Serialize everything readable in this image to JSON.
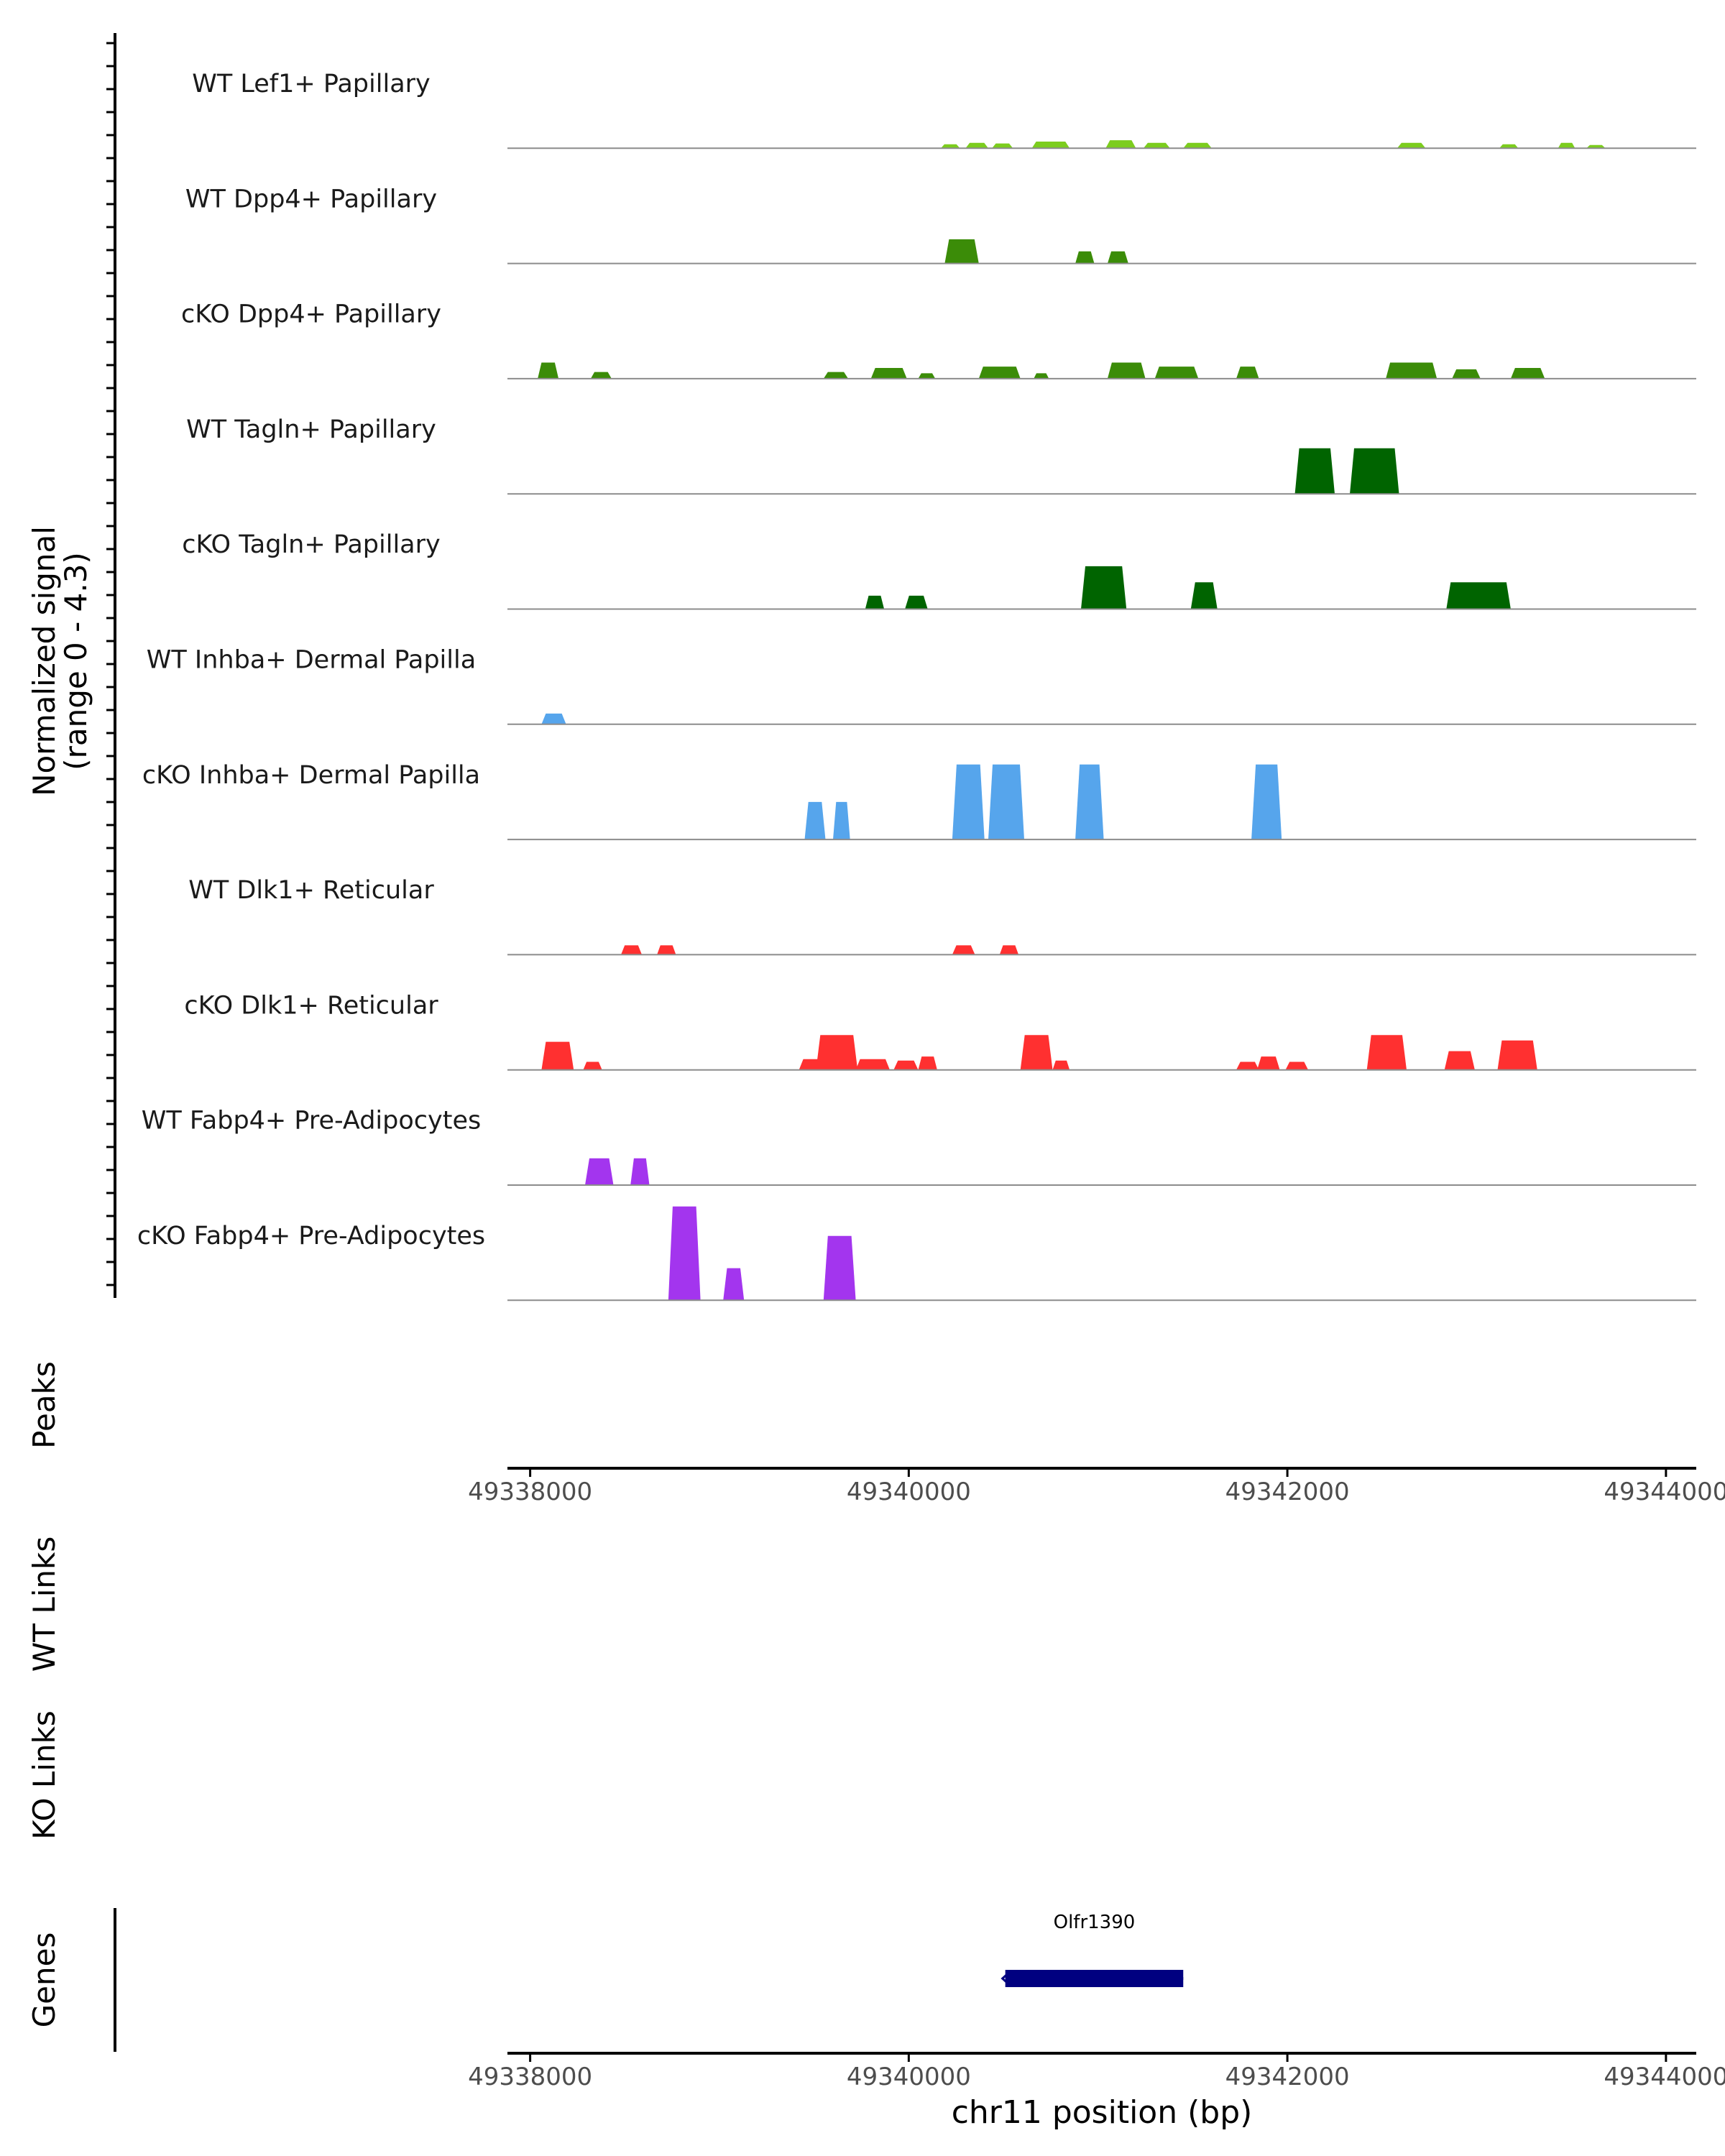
{
  "chart_data": {
    "type": "area",
    "chromosome": "chr11",
    "xlabel": "chr11 position (bp)",
    "ylabel": "Normalized signal",
    "ylabel_range": "(range 0 - 4.3)",
    "xlim": [
      49337880,
      49344160
    ],
    "ylim": [
      0,
      4.3
    ],
    "x_ticks": [
      49338000,
      49340000,
      49342000,
      49344000
    ],
    "x_tick_labels": [
      "49338000",
      "49340000",
      "49342000",
      "49344000"
    ],
    "track_labels": {
      "peaks": "Peaks",
      "wt_links": "WT Links",
      "ko_links": "KO Links",
      "genes": "Genes"
    },
    "tracks": [
      {
        "name": "WT Lef1+ Papillary",
        "color": "#7CCD1E",
        "peaks": [
          {
            "start": 49340170,
            "end": 49340270,
            "height": 0.15
          },
          {
            "start": 49340300,
            "end": 49340420,
            "height": 0.2
          },
          {
            "start": 49340440,
            "end": 49340550,
            "height": 0.18
          },
          {
            "start": 49340650,
            "end": 49340850,
            "height": 0.25
          },
          {
            "start": 49341040,
            "end": 49341200,
            "height": 0.3
          },
          {
            "start": 49341240,
            "end": 49341380,
            "height": 0.2
          },
          {
            "start": 49341450,
            "end": 49341600,
            "height": 0.2
          },
          {
            "start": 49342580,
            "end": 49342730,
            "height": 0.2
          },
          {
            "start": 49343120,
            "end": 49343220,
            "height": 0.15
          },
          {
            "start": 49343430,
            "end": 49343520,
            "height": 0.2
          },
          {
            "start": 49343580,
            "end": 49343680,
            "height": 0.12
          }
        ]
      },
      {
        "name": "WT Dpp4+ Papillary",
        "color": "#3B8C08",
        "peaks": [
          {
            "start": 49340190,
            "end": 49340370,
            "height": 0.9
          },
          {
            "start": 49340880,
            "end": 49340980,
            "height": 0.45
          },
          {
            "start": 49341050,
            "end": 49341160,
            "height": 0.45
          }
        ]
      },
      {
        "name": "cKO Dpp4+ Papillary",
        "color": "#3B8C08",
        "peaks": [
          {
            "start": 49338040,
            "end": 49338150,
            "height": 0.6
          },
          {
            "start": 49338320,
            "end": 49338430,
            "height": 0.25
          },
          {
            "start": 49339550,
            "end": 49339680,
            "height": 0.25
          },
          {
            "start": 49339800,
            "end": 49339990,
            "height": 0.4
          },
          {
            "start": 49340050,
            "end": 49340140,
            "height": 0.2
          },
          {
            "start": 49340370,
            "end": 49340590,
            "height": 0.45
          },
          {
            "start": 49340660,
            "end": 49340740,
            "height": 0.2
          },
          {
            "start": 49341050,
            "end": 49341250,
            "height": 0.6
          },
          {
            "start": 49341300,
            "end": 49341530,
            "height": 0.45
          },
          {
            "start": 49341730,
            "end": 49341850,
            "height": 0.45
          },
          {
            "start": 49342520,
            "end": 49342790,
            "height": 0.6
          },
          {
            "start": 49342870,
            "end": 49343020,
            "height": 0.35
          },
          {
            "start": 49343180,
            "end": 49343360,
            "height": 0.4
          }
        ]
      },
      {
        "name": "WT Tagln+ Papillary",
        "color": "#006400",
        "peaks": [
          {
            "start": 49342040,
            "end": 49342250,
            "height": 1.7
          },
          {
            "start": 49342330,
            "end": 49342590,
            "height": 1.7
          }
        ]
      },
      {
        "name": "cKO Tagln+ Papillary",
        "color": "#006400",
        "peaks": [
          {
            "start": 49339770,
            "end": 49339870,
            "height": 0.5
          },
          {
            "start": 49339980,
            "end": 49340100,
            "height": 0.5
          },
          {
            "start": 49340910,
            "end": 49341150,
            "height": 1.6
          },
          {
            "start": 49341490,
            "end": 49341630,
            "height": 1.0
          },
          {
            "start": 49342840,
            "end": 49343180,
            "height": 1.0
          }
        ]
      },
      {
        "name": "WT Inhba+ Dermal Papilla",
        "color": "#56A5EC",
        "peaks": [
          {
            "start": 49338060,
            "end": 49338190,
            "height": 0.4
          }
        ]
      },
      {
        "name": "cKO Inhba+ Dermal Papilla",
        "color": "#56A5EC",
        "peaks": [
          {
            "start": 49339450,
            "end": 49339560,
            "height": 1.4
          },
          {
            "start": 49339600,
            "end": 49339690,
            "height": 1.4
          },
          {
            "start": 49340230,
            "end": 49340400,
            "height": 2.8
          },
          {
            "start": 49340420,
            "end": 49340610,
            "height": 2.8
          },
          {
            "start": 49340880,
            "end": 49341030,
            "height": 2.8
          },
          {
            "start": 49341810,
            "end": 49341970,
            "height": 2.8
          }
        ]
      },
      {
        "name": "WT Dlk1+ Reticular",
        "color": "#FF3030",
        "peaks": [
          {
            "start": 49338480,
            "end": 49338590,
            "height": 0.35
          },
          {
            "start": 49338670,
            "end": 49338770,
            "height": 0.35
          },
          {
            "start": 49340230,
            "end": 49340350,
            "height": 0.35
          },
          {
            "start": 49340480,
            "end": 49340580,
            "height": 0.35
          }
        ]
      },
      {
        "name": "cKO Dlk1+ Reticular",
        "color": "#FF3030",
        "peaks": [
          {
            "start": 49338060,
            "end": 49338230,
            "height": 1.05
          },
          {
            "start": 49338280,
            "end": 49338380,
            "height": 0.3
          },
          {
            "start": 49339420,
            "end": 49339720,
            "height": 0.4
          },
          {
            "start": 49339510,
            "end": 49339730,
            "height": 1.3
          },
          {
            "start": 49339720,
            "end": 49339900,
            "height": 0.4
          },
          {
            "start": 49339920,
            "end": 49340050,
            "height": 0.35
          },
          {
            "start": 49340050,
            "end": 49340150,
            "height": 0.5
          },
          {
            "start": 49340590,
            "end": 49340760,
            "height": 1.3
          },
          {
            "start": 49340760,
            "end": 49340850,
            "height": 0.35
          },
          {
            "start": 49341730,
            "end": 49341850,
            "height": 0.3
          },
          {
            "start": 49341840,
            "end": 49341960,
            "height": 0.5
          },
          {
            "start": 49341990,
            "end": 49342110,
            "height": 0.3
          },
          {
            "start": 49342420,
            "end": 49342630,
            "height": 1.3
          },
          {
            "start": 49342830,
            "end": 49342990,
            "height": 0.7
          },
          {
            "start": 49343110,
            "end": 49343320,
            "height": 1.1
          }
        ]
      },
      {
        "name": "WT Fabp4+ Pre-Adipocytes",
        "color": "#A335EE",
        "peaks": [
          {
            "start": 49338290,
            "end": 49338440,
            "height": 1.0
          },
          {
            "start": 49338530,
            "end": 49338630,
            "height": 1.0
          }
        ]
      },
      {
        "name": "cKO Fabp4+ Pre-Adipocytes",
        "color": "#A335EE",
        "peaks": [
          {
            "start": 49338730,
            "end": 49338900,
            "height": 3.5
          },
          {
            "start": 49339020,
            "end": 49339130,
            "height": 1.2
          },
          {
            "start": 49339550,
            "end": 49339720,
            "height": 2.4
          }
        ]
      }
    ],
    "genes": [
      {
        "name": "Olfr1390",
        "start": 49340510,
        "end": 49341450,
        "strand": "-",
        "color": "#000080"
      }
    ]
  }
}
